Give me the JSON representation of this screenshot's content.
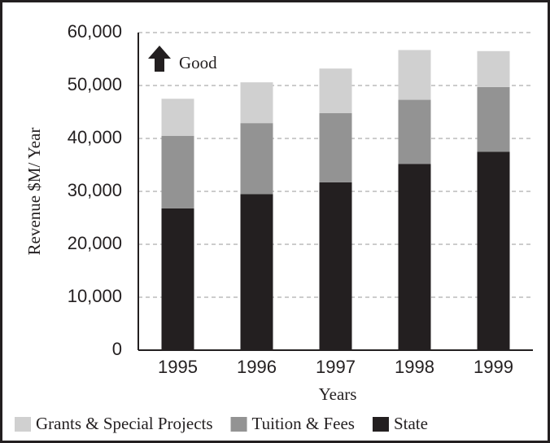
{
  "chart_data": {
    "type": "stacked_bar",
    "y_label": "Revenue $M/ Year",
    "x_label": "Years",
    "annotation": "Good",
    "categories": [
      "1995",
      "1996",
      "1997",
      "1998",
      "1999"
    ],
    "series": [
      {
        "name": "State",
        "color": "#231f20",
        "values": [
          26800,
          29500,
          31700,
          35200,
          37500
        ]
      },
      {
        "name": "Tuition & Fees",
        "color": "#939393",
        "values": [
          13700,
          13400,
          13100,
          12100,
          12200
        ]
      },
      {
        "name": "Grants & Special Projects",
        "color": "#d0d0d0",
        "values": [
          7000,
          7700,
          8400,
          9400,
          6800
        ]
      }
    ],
    "ylim": [
      0,
      60000
    ],
    "yticks": [
      0,
      {
        "value": 10000,
        "label": "10,000"
      },
      {
        "value": 20000,
        "label": "20,000"
      },
      {
        "value": 30000,
        "label": "30,000"
      },
      {
        "value": 40000,
        "label": "40,000"
      },
      {
        "value": 50000,
        "label": "50,000"
      },
      {
        "value": 60000,
        "label": "60,000"
      }
    ],
    "grid": true
  }
}
